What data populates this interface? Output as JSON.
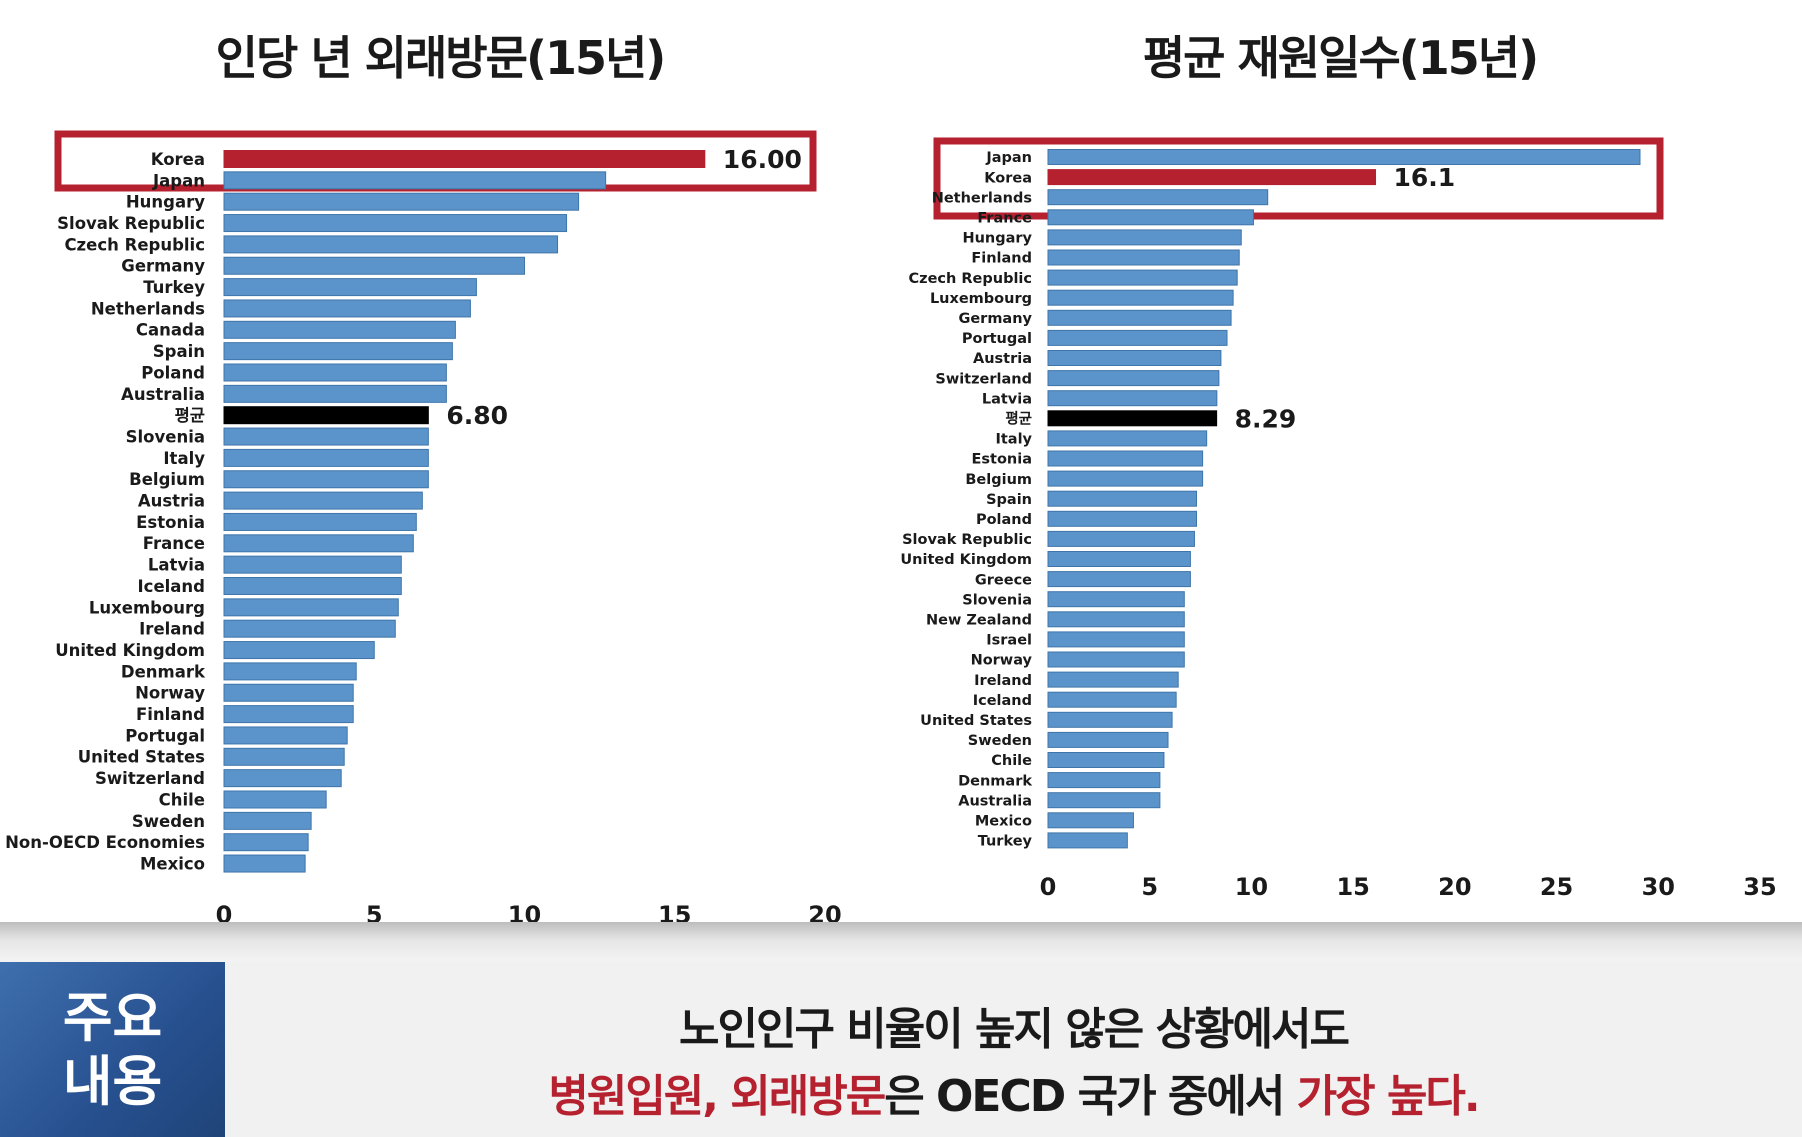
{
  "chart_data": [
    {
      "type": "bar",
      "orientation": "horizontal",
      "title": "인당 년 외래방문(15년)",
      "xlim": [
        0,
        20
      ],
      "xticks": [
        "0",
        "5",
        "10",
        "15",
        "20"
      ],
      "highlight": "Korea",
      "average_label": "평균",
      "categories": [
        "Korea",
        "Japan",
        "Hungary",
        "Slovak Republic",
        "Czech Republic",
        "Germany",
        "Turkey",
        "Netherlands",
        "Canada",
        "Spain",
        "Poland",
        "Australia",
        "평균",
        "Slovenia",
        "Italy",
        "Belgium",
        "Austria",
        "Estonia",
        "France",
        "Latvia",
        "Iceland",
        "Luxembourg",
        "Ireland",
        "United Kingdom",
        "Denmark",
        "Norway",
        "Finland",
        "Portugal",
        "United States",
        "Switzerland",
        "Chile",
        "Sweden",
        "Non-OECD Economies",
        "Mexico"
      ],
      "values": [
        16.0,
        12.7,
        11.8,
        11.4,
        11.1,
        10.0,
        8.4,
        8.2,
        7.7,
        7.6,
        7.4,
        7.4,
        6.8,
        6.8,
        6.8,
        6.8,
        6.6,
        6.4,
        6.3,
        5.9,
        5.9,
        5.8,
        5.7,
        5.0,
        4.4,
        4.3,
        4.3,
        4.1,
        4.0,
        3.9,
        3.4,
        2.9,
        2.8,
        2.7
      ],
      "data_labels": {
        "Korea": "16.00",
        "평균": "6.80"
      }
    },
    {
      "type": "bar",
      "orientation": "horizontal",
      "title": "평균 재원일수(15년)",
      "xlim": [
        0,
        35
      ],
      "xticks": [
        "0",
        "5",
        "10",
        "15",
        "20",
        "25",
        "30",
        "35"
      ],
      "highlight": "Korea",
      "average_label": "평균",
      "categories": [
        "Japan",
        "Korea",
        "Netherlands",
        "France",
        "Hungary",
        "Finland",
        "Czech Republic",
        "Luxembourg",
        "Germany",
        "Portugal",
        "Austria",
        "Switzerland",
        "Latvia",
        "평균",
        "Italy",
        "Estonia",
        "Belgium",
        "Spain",
        "Poland",
        "Slovak Republic",
        "United Kingdom",
        "Greece",
        "Slovenia",
        "New Zealand",
        "Israel",
        "Norway",
        "Ireland",
        "Iceland",
        "United States",
        "Sweden",
        "Chile",
        "Denmark",
        "Australia",
        "Mexico",
        "Turkey"
      ],
      "values": [
        29.1,
        16.1,
        10.8,
        10.1,
        9.5,
        9.4,
        9.3,
        9.1,
        9.0,
        8.8,
        8.5,
        8.4,
        8.3,
        8.29,
        7.8,
        7.6,
        7.6,
        7.3,
        7.3,
        7.2,
        7.0,
        7.0,
        6.7,
        6.7,
        6.7,
        6.7,
        6.4,
        6.3,
        6.1,
        5.9,
        5.7,
        5.5,
        5.5,
        4.2,
        3.9
      ],
      "data_labels": {
        "Korea": "16.1",
        "평균": "8.29"
      }
    }
  ],
  "colors": {
    "bar": "#5b94cb",
    "bar_edge": "#3f75a9",
    "highlight": "#b5212e",
    "average": "#000000",
    "box": "#b5212e"
  },
  "summary": {
    "tag_line1": "주요",
    "tag_line2": "내용",
    "line1": "노인인구 비율이 높지 않은 상황에서도",
    "line2_red1": "병원입원, 외래방문",
    "line2_mid": "은 OECD 국가 중에서 ",
    "line2_red2": "가장 높다."
  }
}
